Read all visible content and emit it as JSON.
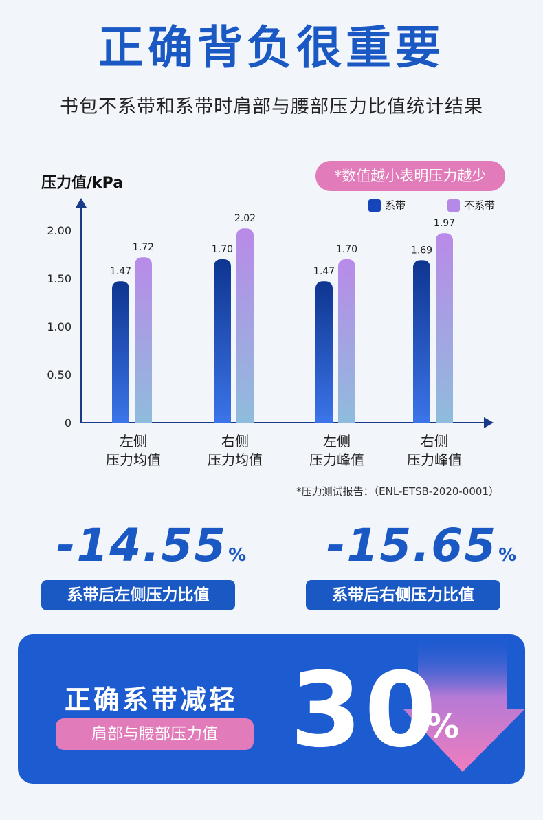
{
  "header": {
    "title": "正确背负很重要",
    "subtitle": "书包不系带和系带时肩部与腰部压力比值统计结果"
  },
  "note": "*数值越小表明压力越少",
  "report": "*压力测试报告：（ENL-ETSB-2020-0001）",
  "chart_data": {
    "type": "bar",
    "ylabel": "压力值/kPa",
    "yticks": [
      "0",
      "0.50",
      "1.00",
      "1.50",
      "2.00"
    ],
    "ylim": [
      0,
      2.2
    ],
    "categories": [
      [
        "左侧",
        "压力均值"
      ],
      [
        "右侧",
        "压力均值"
      ],
      [
        "左侧",
        "压力峰值"
      ],
      [
        "右侧",
        "压力峰值"
      ]
    ],
    "series": [
      {
        "name": "系带",
        "values": [
          1.47,
          1.7,
          1.47,
          1.69
        ],
        "labels": [
          "1.47",
          "1.70",
          "1.47",
          "1.69"
        ],
        "color_top": "#0e3590",
        "color_bottom": "#3b74e8"
      },
      {
        "name": "不系带",
        "values": [
          1.72,
          2.02,
          1.7,
          1.97
        ],
        "labels": [
          "1.72",
          "2.02",
          "1.70",
          "1.97"
        ],
        "color_top": "#b98ae8",
        "color_bottom": "#8fbcdc"
      }
    ],
    "legend": "top-right"
  },
  "stats": [
    {
      "value": "-14.55",
      "unit": "%",
      "label": "系带后左侧压力比值"
    },
    {
      "value": "-15.65",
      "unit": "%",
      "label": "系带后右侧压力比值"
    }
  ],
  "banner": {
    "headline": "正确系带减轻",
    "pill": "肩部与腰部压力值",
    "number": "30",
    "unit": "%"
  },
  "colors": {
    "brand": "#1a58c4",
    "pink": "#e27bb9",
    "background": "#f2f5fa"
  }
}
